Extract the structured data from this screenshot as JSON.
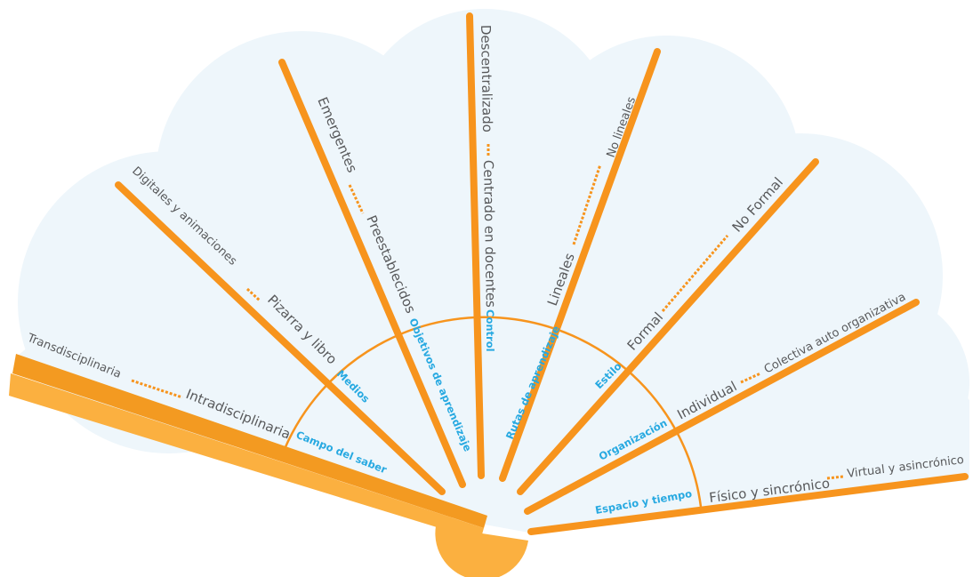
{
  "segments": [
    {
      "category": "Campo del saber",
      "inner": "Intradisciplinaria",
      "outer": "Transdisciplinaria"
    },
    {
      "category": "Medios",
      "inner": "Pizarra y libro",
      "outer": "Digitales y animaciones"
    },
    {
      "category": "Objetivos de aprendizaje",
      "inner": "Preestablecidos",
      "outer": "Emergentes"
    },
    {
      "category": "Control",
      "inner": "Centrado en docentes",
      "outer": "Descentralizado"
    },
    {
      "category": "Rutas de aprendizaje",
      "inner": "Lineales",
      "outer": "No lineales"
    },
    {
      "category": "Estilo",
      "inner": "Formal",
      "outer": "No Formal"
    },
    {
      "category": "Organización",
      "inner": "Individual",
      "outer": "Colectiva auto organizativa"
    },
    {
      "category": "Espacio y tiempo",
      "inner": "Físico y sincrónico",
      "outer": "Virtual y asincrónico"
    }
  ]
}
